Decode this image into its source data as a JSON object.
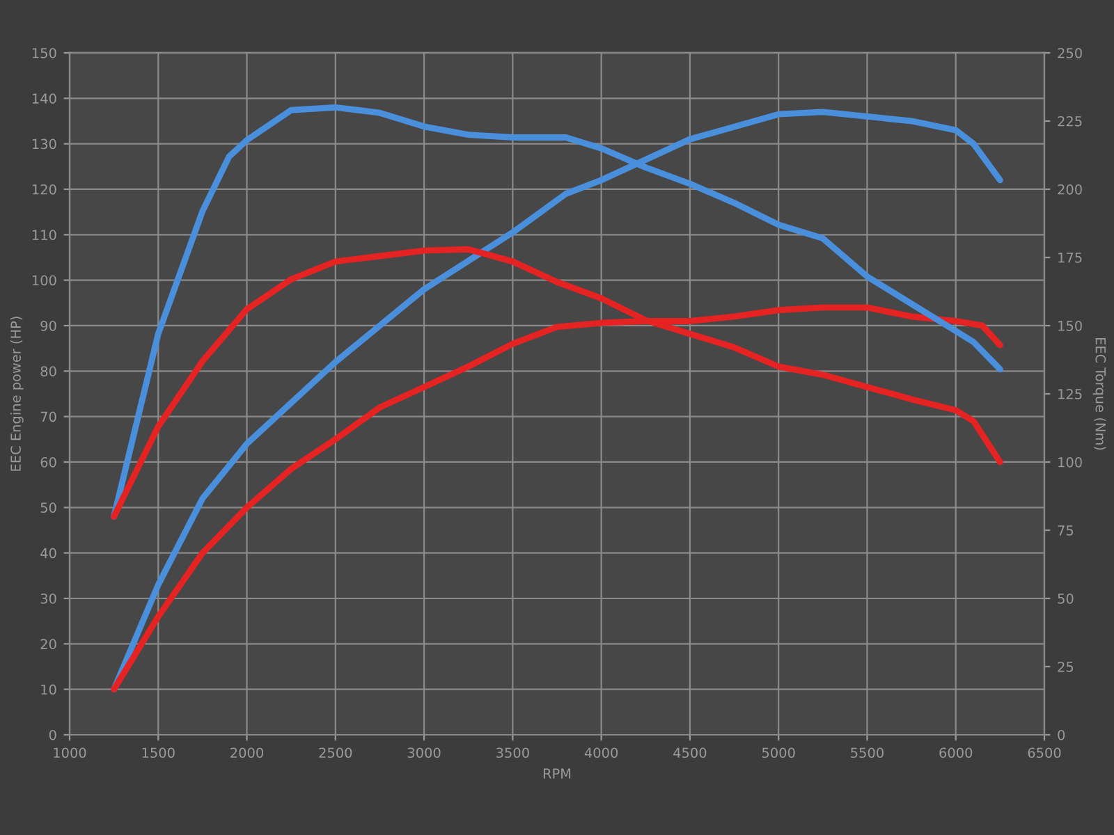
{
  "chart_data": {
    "type": "line",
    "xlabel": "RPM",
    "ylabel": "EEC Engine power (HP)",
    "y2label": "EEC Torque (Nm)",
    "xlim": [
      1000,
      6500
    ],
    "xticks": [
      1000,
      1500,
      2000,
      2500,
      3000,
      3500,
      4000,
      4500,
      5000,
      5500,
      6000,
      6500
    ],
    "ylim": [
      0,
      150
    ],
    "yticks": [
      0,
      10,
      20,
      30,
      40,
      50,
      60,
      70,
      80,
      90,
      100,
      110,
      120,
      130,
      140,
      150
    ],
    "y2lim": [
      0,
      250
    ],
    "y2ticks": [
      0,
      25,
      50,
      75,
      100,
      125,
      150,
      175,
      200,
      225,
      250
    ],
    "grid": true,
    "marker": "none",
    "line_style": "solid",
    "series": [
      {
        "color": "#4a8fdc",
        "x": [
          1250,
          1500,
          1750,
          2000,
          2500,
          3000,
          3500,
          3800,
          4000,
          4500,
          5000,
          5250,
          5500,
          5750,
          6000,
          6100,
          6250
        ],
        "values": [
          10,
          33,
          52,
          64,
          82,
          98,
          110.5,
          119,
          122,
          131,
          136.5,
          137,
          136,
          135,
          133,
          130,
          122
        ]
      },
      {
        "color": "#4a8fdc",
        "axis": "y2",
        "x": [
          1250,
          1500,
          1750,
          1900,
          2000,
          2250,
          2500,
          2750,
          3000,
          3250,
          3500,
          3800,
          4000,
          4250,
          4500,
          4750,
          5000,
          5250,
          5500,
          5750,
          6000,
          6100,
          6250
        ],
        "values": [
          80,
          147,
          192,
          212,
          218,
          229,
          230,
          228,
          223,
          220,
          219,
          219,
          215,
          208,
          202,
          195,
          187,
          182,
          168,
          158,
          148,
          144,
          134
        ]
      },
      {
        "color": "#e52323",
        "x": [
          1250,
          1500,
          1750,
          2000,
          2250,
          2500,
          2750,
          3000,
          3250,
          3500,
          3750,
          4000,
          4250,
          4500,
          4750,
          5000,
          5250,
          5500,
          5750,
          6000,
          6150,
          6250
        ],
        "values": [
          10,
          26,
          40,
          50,
          58.5,
          65,
          72,
          76.5,
          81,
          86,
          89.7,
          90.6,
          91,
          91,
          92,
          93.4,
          94,
          94,
          92,
          91,
          90,
          85.7
        ]
      },
      {
        "color": "#e52323",
        "axis": "y2",
        "x": [
          1250,
          1500,
          1750,
          2000,
          2250,
          2500,
          2750,
          3000,
          3250,
          3500,
          3750,
          4000,
          4250,
          4500,
          4750,
          5000,
          5250,
          5500,
          5750,
          6000,
          6100,
          6250
        ],
        "values": [
          80,
          113,
          137,
          156,
          167,
          173.5,
          175.5,
          177.5,
          178,
          173.5,
          166,
          160,
          152,
          147,
          142,
          135,
          132,
          127.5,
          123,
          119,
          115,
          100
        ]
      }
    ]
  }
}
